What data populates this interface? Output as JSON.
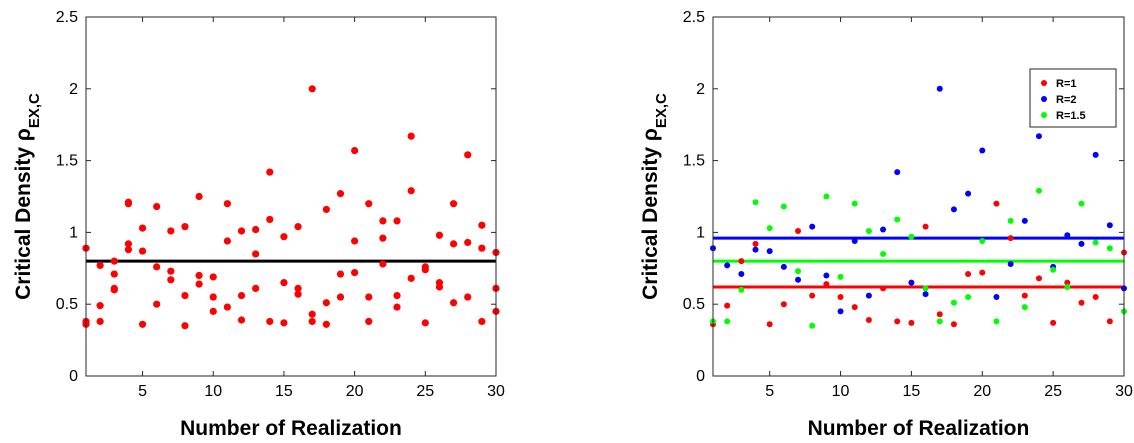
{
  "chart_data": [
    {
      "type": "scatter",
      "xlabel": "Number of Realization",
      "ylabel_main": "Critical Density ρ",
      "ylabel_sub": "EX,C",
      "xlim": [
        1,
        30
      ],
      "ylim": [
        0,
        2.5
      ],
      "xticks": [
        "5",
        "10",
        "15",
        "20",
        "25",
        "30"
      ],
      "yticks": [
        "0",
        "0.5",
        "1",
        "1.5",
        "2",
        "2.5"
      ],
      "grid": false,
      "legend": null,
      "series": [
        {
          "color": "#ff0000",
          "x": [
            1,
            1,
            1,
            2,
            2,
            2,
            3,
            3,
            3,
            3,
            4,
            4,
            4,
            4,
            5,
            5,
            5,
            6,
            6,
            6,
            7,
            7,
            7,
            8,
            8,
            8,
            9,
            9,
            9,
            10,
            10,
            10,
            11,
            11,
            11,
            12,
            12,
            12,
            13,
            13,
            13,
            14,
            14,
            14,
            15,
            15,
            15,
            16,
            16,
            16,
            17,
            17,
            17,
            18,
            18,
            18,
            19,
            19,
            19,
            20,
            20,
            20,
            21,
            21,
            21,
            22,
            22,
            22,
            23,
            23,
            23,
            24,
            24,
            24,
            25,
            25,
            25,
            26,
            26,
            26,
            27,
            27,
            27,
            28,
            28,
            28,
            29,
            29,
            29,
            30,
            30,
            30
          ],
          "y": [
            0.89,
            0.38,
            0.36,
            0.77,
            0.49,
            0.38,
            0.8,
            0.71,
            0.6,
            0.61,
            1.21,
            0.92,
            0.88,
            1.2,
            1.03,
            0.87,
            0.36,
            1.18,
            0.76,
            0.5,
            1.01,
            0.73,
            0.67,
            1.04,
            0.56,
            0.35,
            1.25,
            0.7,
            0.64,
            0.69,
            0.55,
            0.45,
            1.2,
            0.94,
            0.48,
            1.01,
            0.56,
            0.39,
            1.02,
            0.85,
            0.61,
            1.42,
            1.09,
            0.38,
            0.97,
            0.65,
            0.37,
            1.04,
            0.61,
            0.57,
            2.0,
            0.43,
            0.38,
            1.16,
            0.51,
            0.36,
            1.27,
            0.71,
            0.55,
            1.57,
            0.94,
            0.72,
            1.2,
            0.55,
            0.38,
            1.08,
            0.96,
            0.78,
            1.08,
            0.56,
            0.48,
            1.67,
            1.29,
            0.68,
            0.76,
            0.74,
            0.37,
            0.98,
            0.65,
            0.62,
            1.2,
            0.92,
            0.51,
            1.54,
            0.93,
            0.55,
            1.05,
            0.89,
            0.38,
            0.86,
            0.61,
            0.45
          ]
        }
      ],
      "hlines": [
        {
          "y": 0.8,
          "color": "#000000"
        }
      ]
    },
    {
      "type": "scatter",
      "xlabel": "Number of Realization",
      "ylabel_main": "Critical Density ρ",
      "ylabel_sub": "EX,C",
      "xlim": [
        1,
        30
      ],
      "ylim": [
        0,
        2.5
      ],
      "xticks": [
        "5",
        "10",
        "15",
        "20",
        "25",
        "30"
      ],
      "yticks": [
        "0",
        "0.5",
        "1",
        "1.5",
        "2",
        "2.5"
      ],
      "grid": false,
      "legend": "top-right",
      "series": [
        {
          "name": "R=1",
          "color": "#ff0000",
          "x": [
            1,
            2,
            3,
            4,
            5,
            6,
            7,
            8,
            9,
            10,
            11,
            12,
            13,
            14,
            15,
            16,
            17,
            18,
            19,
            20,
            21,
            22,
            23,
            24,
            25,
            26,
            27,
            28,
            29,
            30
          ],
          "y": [
            0.36,
            0.49,
            0.8,
            0.92,
            0.36,
            0.5,
            1.01,
            0.56,
            0.64,
            0.55,
            0.48,
            0.39,
            0.61,
            0.38,
            0.37,
            1.04,
            0.43,
            0.36,
            0.71,
            0.72,
            1.2,
            0.96,
            0.56,
            0.68,
            0.37,
            0.65,
            0.51,
            0.55,
            0.38,
            0.86
          ]
        },
        {
          "name": "R=2",
          "color": "#0000ff",
          "x": [
            1,
            2,
            3,
            4,
            5,
            6,
            7,
            8,
            9,
            10,
            11,
            12,
            13,
            14,
            15,
            16,
            17,
            18,
            19,
            20,
            21,
            22,
            23,
            24,
            25,
            26,
            27,
            28,
            29,
            30
          ],
          "y": [
            0.89,
            0.77,
            0.71,
            0.88,
            0.87,
            0.76,
            0.67,
            1.04,
            0.7,
            0.45,
            0.94,
            0.56,
            1.02,
            1.42,
            0.65,
            0.57,
            2.0,
            1.16,
            1.27,
            1.57,
            0.55,
            0.78,
            1.08,
            1.67,
            0.76,
            0.98,
            0.92,
            1.54,
            1.05,
            0.61
          ]
        },
        {
          "name": "R=1.5",
          "color": "#00ff00",
          "x": [
            1,
            2,
            3,
            4,
            5,
            6,
            7,
            8,
            9,
            10,
            11,
            12,
            13,
            14,
            15,
            16,
            17,
            18,
            19,
            20,
            21,
            22,
            23,
            24,
            25,
            26,
            27,
            28,
            29,
            30
          ],
          "y": [
            0.38,
            0.38,
            0.6,
            1.21,
            1.03,
            1.18,
            0.73,
            0.35,
            1.25,
            0.69,
            1.2,
            1.01,
            0.85,
            1.09,
            0.97,
            0.61,
            0.38,
            0.51,
            0.55,
            0.94,
            0.38,
            1.08,
            0.48,
            1.29,
            0.74,
            0.62,
            1.2,
            0.93,
            0.89,
            0.45
          ]
        }
      ],
      "hlines": [
        {
          "y": 0.96,
          "color": "#0000ff"
        },
        {
          "y": 0.8,
          "color": "#00ff00"
        },
        {
          "y": 0.62,
          "color": "#ff0000"
        }
      ]
    }
  ]
}
